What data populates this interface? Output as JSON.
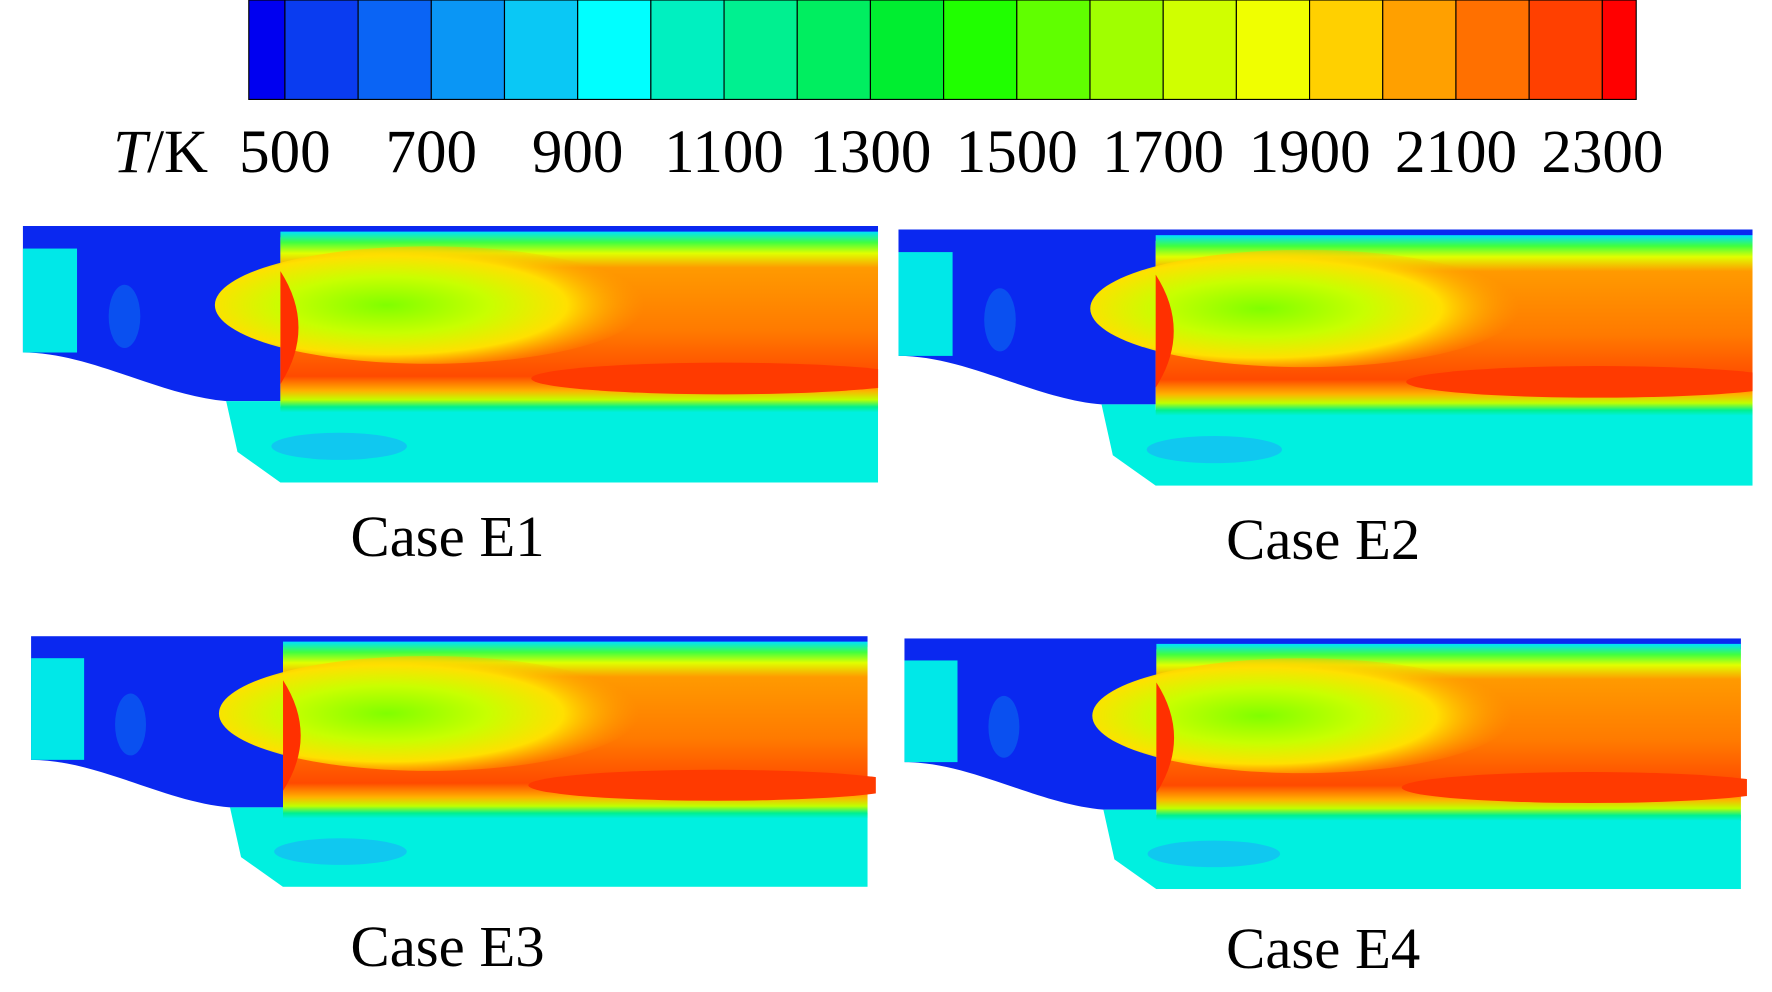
{
  "colorbar": {
    "label_symbol": "T",
    "label_unit": "/K",
    "ticks": [
      500,
      700,
      900,
      1100,
      1300,
      1500,
      1700,
      1900,
      2100,
      2300
    ]
  },
  "panels": [
    {
      "caption": "Case E1"
    },
    {
      "caption": "Case E2"
    },
    {
      "caption": "Case E3"
    },
    {
      "caption": "Case E4"
    }
  ]
}
